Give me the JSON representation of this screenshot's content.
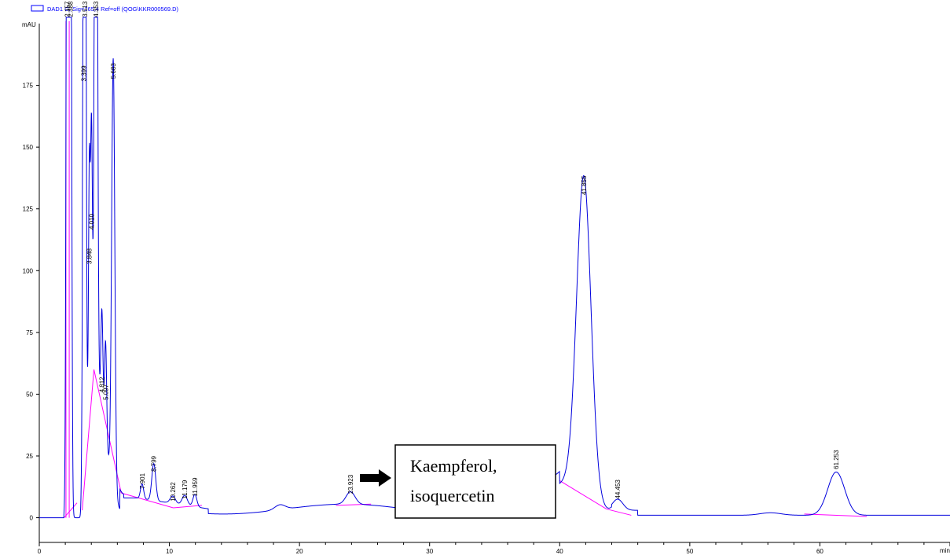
{
  "header": {
    "signal_label": "DAD1 G, Sig=365,4 Ref=off (QOG\\KKR000569.D)"
  },
  "annotation": {
    "line1": "Kaempferol,",
    "line2": "isoquercetin"
  },
  "colors": {
    "trace": "#0000dd",
    "baseline": "#ff00ff",
    "axis": "#000000",
    "header": "#0000ff"
  },
  "chart_data": {
    "type": "line",
    "title": "",
    "ylabel": "mAU",
    "xlabel": "min",
    "xlim": [
      0,
      70
    ],
    "ylim": [
      -10,
      200
    ],
    "x_ticks": [
      0,
      10,
      20,
      30,
      40,
      50,
      60
    ],
    "y_ticks": [
      0,
      25,
      50,
      75,
      100,
      125,
      150,
      175
    ],
    "y_tick_labels": [
      "0",
      "25",
      "50",
      "75",
      "100",
      "125",
      "150",
      "175"
    ],
    "x_tick_labels": [
      "0",
      "10",
      "20",
      "30",
      "40",
      "50",
      "60"
    ],
    "grid": false,
    "legend": "top-left",
    "baseline_level": 0,
    "peaks": [
      {
        "rt": 2.157,
        "height": 400,
        "width": 0.08
      },
      {
        "rt": 2.388,
        "height": 400,
        "width": 0.08
      },
      {
        "rt": 3.399,
        "height": 170,
        "width": 0.08
      },
      {
        "rt": 3.513,
        "height": 400,
        "width": 0.07
      },
      {
        "rt": 3.848,
        "height": 92,
        "width": 0.06
      },
      {
        "rt": 4.01,
        "height": 107,
        "width": 0.07
      },
      {
        "rt": 4.353,
        "height": 400,
        "width": 0.1
      },
      {
        "rt": 4.812,
        "height": 42,
        "width": 0.08
      },
      {
        "rt": 5.097,
        "height": 40,
        "width": 0.08
      },
      {
        "rt": 5.683,
        "height": 174,
        "width": 0.12
      },
      {
        "rt": 7.901,
        "height": 6,
        "width": 0.12
      },
      {
        "rt": 8.799,
        "height": 15,
        "width": 0.15
      },
      {
        "rt": 10.262,
        "height": 3,
        "width": 0.2
      },
      {
        "rt": 11.179,
        "height": 4,
        "width": 0.2
      },
      {
        "rt": 11.959,
        "height": 5,
        "width": 0.15
      },
      {
        "rt": 18.5,
        "height": 2,
        "width": 0.4
      },
      {
        "rt": 23.923,
        "height": 5,
        "width": 0.35
      },
      {
        "rt": 41.855,
        "height": 128,
        "width": 0.55
      },
      {
        "rt": 44.453,
        "height": 4.5,
        "width": 0.4
      },
      {
        "rt": 56.2,
        "height": 1,
        "width": 0.8
      },
      {
        "rt": 61.253,
        "height": 17.5,
        "width": 0.65
      }
    ],
    "peak_labels": [
      "2.157",
      "2.388",
      "3.399",
      "3.513",
      "3.848",
      "4.010",
      "4.353",
      "4.812",
      "5.097",
      "5.683",
      "7.901",
      "8.799",
      "10.262",
      "11.179",
      "11.959",
      "23.923",
      "41.855",
      "44.453",
      "61.253"
    ],
    "peak_label_rts": [
      2.157,
      2.388,
      3.399,
      3.513,
      3.848,
      4.01,
      4.353,
      4.812,
      5.097,
      5.683,
      7.901,
      8.799,
      10.262,
      11.179,
      11.959,
      23.923,
      41.855,
      44.453,
      61.253
    ],
    "peak_label_heights": [
      202,
      202,
      176,
      202,
      102,
      116,
      202,
      50,
      47,
      177,
      11,
      18,
      6,
      7,
      8,
      9,
      130,
      7,
      19
    ]
  }
}
